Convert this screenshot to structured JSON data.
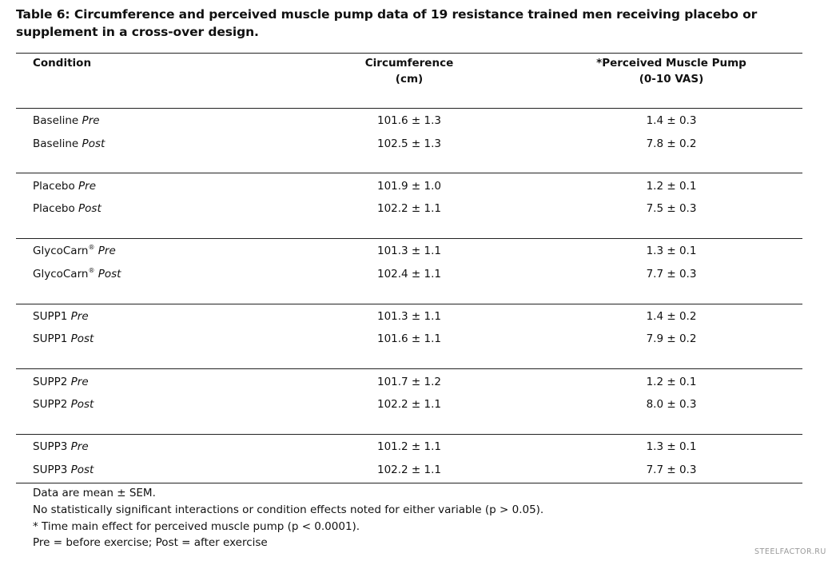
{
  "title": "Table 6: Circumference and perceived muscle pump data of 19 resistance trained men receiving placebo or supplement in a cross-over design.",
  "headers": {
    "condition": "Condition",
    "circ_line1": "Circumference",
    "circ_line2": "(cm)",
    "pump_line1": "*Perceived Muscle Pump",
    "pump_line2": "(0-10 VAS)"
  },
  "rows": [
    {
      "name": "Baseline",
      "sup": "",
      "time": "Pre",
      "circ": "101.6 ± 1.3",
      "pump": "1.4 ± 0.3"
    },
    {
      "name": "Baseline",
      "sup": "",
      "time": "Post",
      "circ": "102.5 ± 1.3",
      "pump": "7.8 ± 0.2"
    },
    {
      "name": "Placebo",
      "sup": "",
      "time": "Pre",
      "circ": "101.9 ± 1.0",
      "pump": "1.2 ± 0.1"
    },
    {
      "name": "Placebo",
      "sup": "",
      "time": "Post",
      "circ": "102.2 ± 1.1",
      "pump": "7.5 ± 0.3"
    },
    {
      "name": "GlycoCarn",
      "sup": "®",
      "time": "Pre",
      "circ": "101.3 ± 1.1",
      "pump": "1.3 ± 0.1"
    },
    {
      "name": "GlycoCarn",
      "sup": "®",
      "time": "Post",
      "circ": "102.4 ± 1.1",
      "pump": "7.7 ± 0.3"
    },
    {
      "name": "SUPP1",
      "sup": "",
      "time": "Pre",
      "circ": "101.3 ± 1.1",
      "pump": "1.4 ± 0.2"
    },
    {
      "name": "SUPP1",
      "sup": "",
      "time": "Post",
      "circ": "101.6 ± 1.1",
      "pump": "7.9 ± 0.2"
    },
    {
      "name": "SUPP2",
      "sup": "",
      "time": "Pre",
      "circ": "101.7 ± 1.2",
      "pump": "1.2 ± 0.1"
    },
    {
      "name": "SUPP2",
      "sup": "",
      "time": "Post",
      "circ": "102.2 ± 1.1",
      "pump": "8.0 ± 0.3"
    },
    {
      "name": "SUPP3",
      "sup": "",
      "time": "Pre",
      "circ": "101.2 ± 1.1",
      "pump": "1.3 ± 0.1"
    },
    {
      "name": "SUPP3",
      "sup": "",
      "time": "Post",
      "circ": "102.2 ± 1.1",
      "pump": "7.7 ± 0.3"
    }
  ],
  "notes": [
    "Data are mean ± SEM.",
    "No statistically significant interactions or condition effects noted for either variable (p > 0.05).",
    "* Time main effect for perceived muscle pump (p < 0.0001).",
    "Pre = before exercise; Post = after exercise"
  ],
  "watermark": "STEELFACTOR.RU"
}
